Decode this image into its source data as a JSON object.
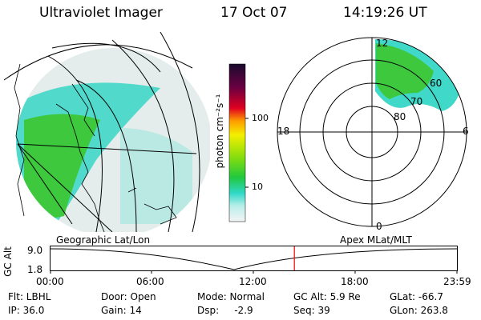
{
  "header": {
    "instrument": "Ultraviolet Imager",
    "date": "17 Oct 07",
    "time": "14:19:26 UT"
  },
  "colorbar": {
    "label": "photon cm⁻²s⁻¹",
    "ticks": [
      "100",
      "10"
    ]
  },
  "polar": {
    "mlt_labels": [
      "12",
      "18",
      "6",
      "0"
    ],
    "lat_labels": [
      "60",
      "70",
      "80"
    ]
  },
  "timeline": {
    "left_caption": "Geographic Lat/Lon",
    "right_caption": "Apex MLat/MLT",
    "ylabel": "GC Alt",
    "y_ticks": [
      "9.0",
      "1.8"
    ],
    "x_ticks": [
      "00:00",
      "06:00",
      "12:00",
      "18:00",
      "23:59"
    ],
    "current_time_fraction": 0.6
  },
  "info": {
    "filter": "Flt: LBHL",
    "ip": "IP: 36.0",
    "door": "Door: Open",
    "gain": "Gain: 14",
    "mode": "Mode: Normal",
    "dsp": "Dsp:     -2.9",
    "gc_alt": "GC Alt: 5.9 Re",
    "seq": "Seq: 39",
    "glat": "GLat: -66.7",
    "glon": "GLon: 263.8"
  },
  "colors": {
    "aurora_green": "#33cc33",
    "aurora_cyan": "#33d6c8",
    "marker_red": "#ff0000"
  }
}
